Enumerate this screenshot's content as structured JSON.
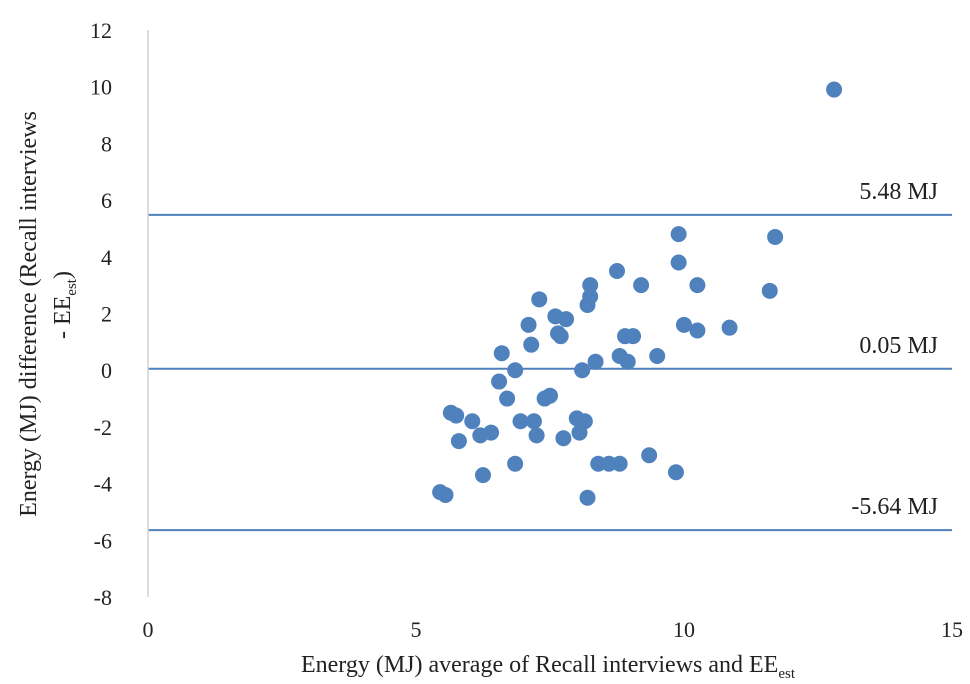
{
  "chart_data": {
    "type": "scatter",
    "xlabel": "Energy (MJ) average of Recall interviews and EE",
    "xlabel_subscript": "est",
    "ylabel_line1": "Energy (MJ) difference (Recall interviews",
    "ylabel_line2": "- EE",
    "ylabel_line2_subscript": "est",
    "ylabel_line2_suffix": ")",
    "xlim": [
      0,
      15
    ],
    "ylim": [
      -8,
      12
    ],
    "xticks": [
      0,
      5,
      10,
      15
    ],
    "yticks": [
      -8,
      -6,
      -4,
      -2,
      0,
      2,
      4,
      6,
      8,
      10,
      12
    ],
    "xticks_labels": [
      "0",
      "5",
      "10",
      "15"
    ],
    "yticks_labels": [
      "-8",
      "-6",
      "-4",
      "-2",
      "0",
      "2",
      "4",
      "6",
      "8",
      "10",
      "12"
    ],
    "grid": false,
    "marker_color": "#4f81bd",
    "line_color": "#4f81bd",
    "reference_lines": [
      {
        "y": 5.48,
        "label": "5.48 MJ"
      },
      {
        "y": 0.05,
        "label": "0.05 MJ"
      },
      {
        "y": -5.64,
        "label": "-5.64 MJ"
      }
    ],
    "points": [
      {
        "x": 5.45,
        "y": -4.3
      },
      {
        "x": 5.55,
        "y": -4.4
      },
      {
        "x": 5.65,
        "y": -1.5
      },
      {
        "x": 5.75,
        "y": -1.6
      },
      {
        "x": 5.8,
        "y": -2.5
      },
      {
        "x": 6.05,
        "y": -1.8
      },
      {
        "x": 6.2,
        "y": -2.3
      },
      {
        "x": 6.25,
        "y": -3.7
      },
      {
        "x": 6.4,
        "y": -2.2
      },
      {
        "x": 6.55,
        "y": -0.4
      },
      {
        "x": 6.6,
        "y": 0.6
      },
      {
        "x": 6.7,
        "y": -1.0
      },
      {
        "x": 6.85,
        "y": 0.0
      },
      {
        "x": 6.85,
        "y": -3.3
      },
      {
        "x": 6.95,
        "y": -1.8
      },
      {
        "x": 7.1,
        "y": 1.6
      },
      {
        "x": 7.15,
        "y": 0.9
      },
      {
        "x": 7.2,
        "y": -1.8
      },
      {
        "x": 7.25,
        "y": -2.3
      },
      {
        "x": 7.3,
        "y": 2.5
      },
      {
        "x": 7.4,
        "y": -1.0
      },
      {
        "x": 7.5,
        "y": -0.9
      },
      {
        "x": 7.6,
        "y": 1.9
      },
      {
        "x": 7.65,
        "y": 1.3
      },
      {
        "x": 7.7,
        "y": 1.2
      },
      {
        "x": 7.75,
        "y": -2.4
      },
      {
        "x": 7.8,
        "y": 1.8
      },
      {
        "x": 8.0,
        "y": -1.7
      },
      {
        "x": 8.05,
        "y": -2.2
      },
      {
        "x": 8.1,
        "y": 0.0
      },
      {
        "x": 8.15,
        "y": -1.8
      },
      {
        "x": 8.2,
        "y": 2.3
      },
      {
        "x": 8.25,
        "y": 3.0
      },
      {
        "x": 8.25,
        "y": 2.6
      },
      {
        "x": 8.2,
        "y": -4.5
      },
      {
        "x": 8.35,
        "y": 0.3
      },
      {
        "x": 8.4,
        "y": -3.3
      },
      {
        "x": 8.6,
        "y": -3.3
      },
      {
        "x": 8.75,
        "y": 3.5
      },
      {
        "x": 8.8,
        "y": 0.5
      },
      {
        "x": 8.8,
        "y": -3.3
      },
      {
        "x": 8.9,
        "y": 1.2
      },
      {
        "x": 8.95,
        "y": 0.3
      },
      {
        "x": 9.05,
        "y": 1.2
      },
      {
        "x": 9.2,
        "y": 3.0
      },
      {
        "x": 9.35,
        "y": -3.0
      },
      {
        "x": 9.5,
        "y": 0.5
      },
      {
        "x": 9.85,
        "y": -3.6
      },
      {
        "x": 9.9,
        "y": 4.8
      },
      {
        "x": 9.9,
        "y": 3.8
      },
      {
        "x": 10.0,
        "y": 1.6
      },
      {
        "x": 10.25,
        "y": 3.0
      },
      {
        "x": 10.25,
        "y": 1.4
      },
      {
        "x": 10.85,
        "y": 1.5
      },
      {
        "x": 11.6,
        "y": 2.8
      },
      {
        "x": 11.7,
        "y": 4.7
      },
      {
        "x": 12.8,
        "y": 9.9
      }
    ]
  }
}
